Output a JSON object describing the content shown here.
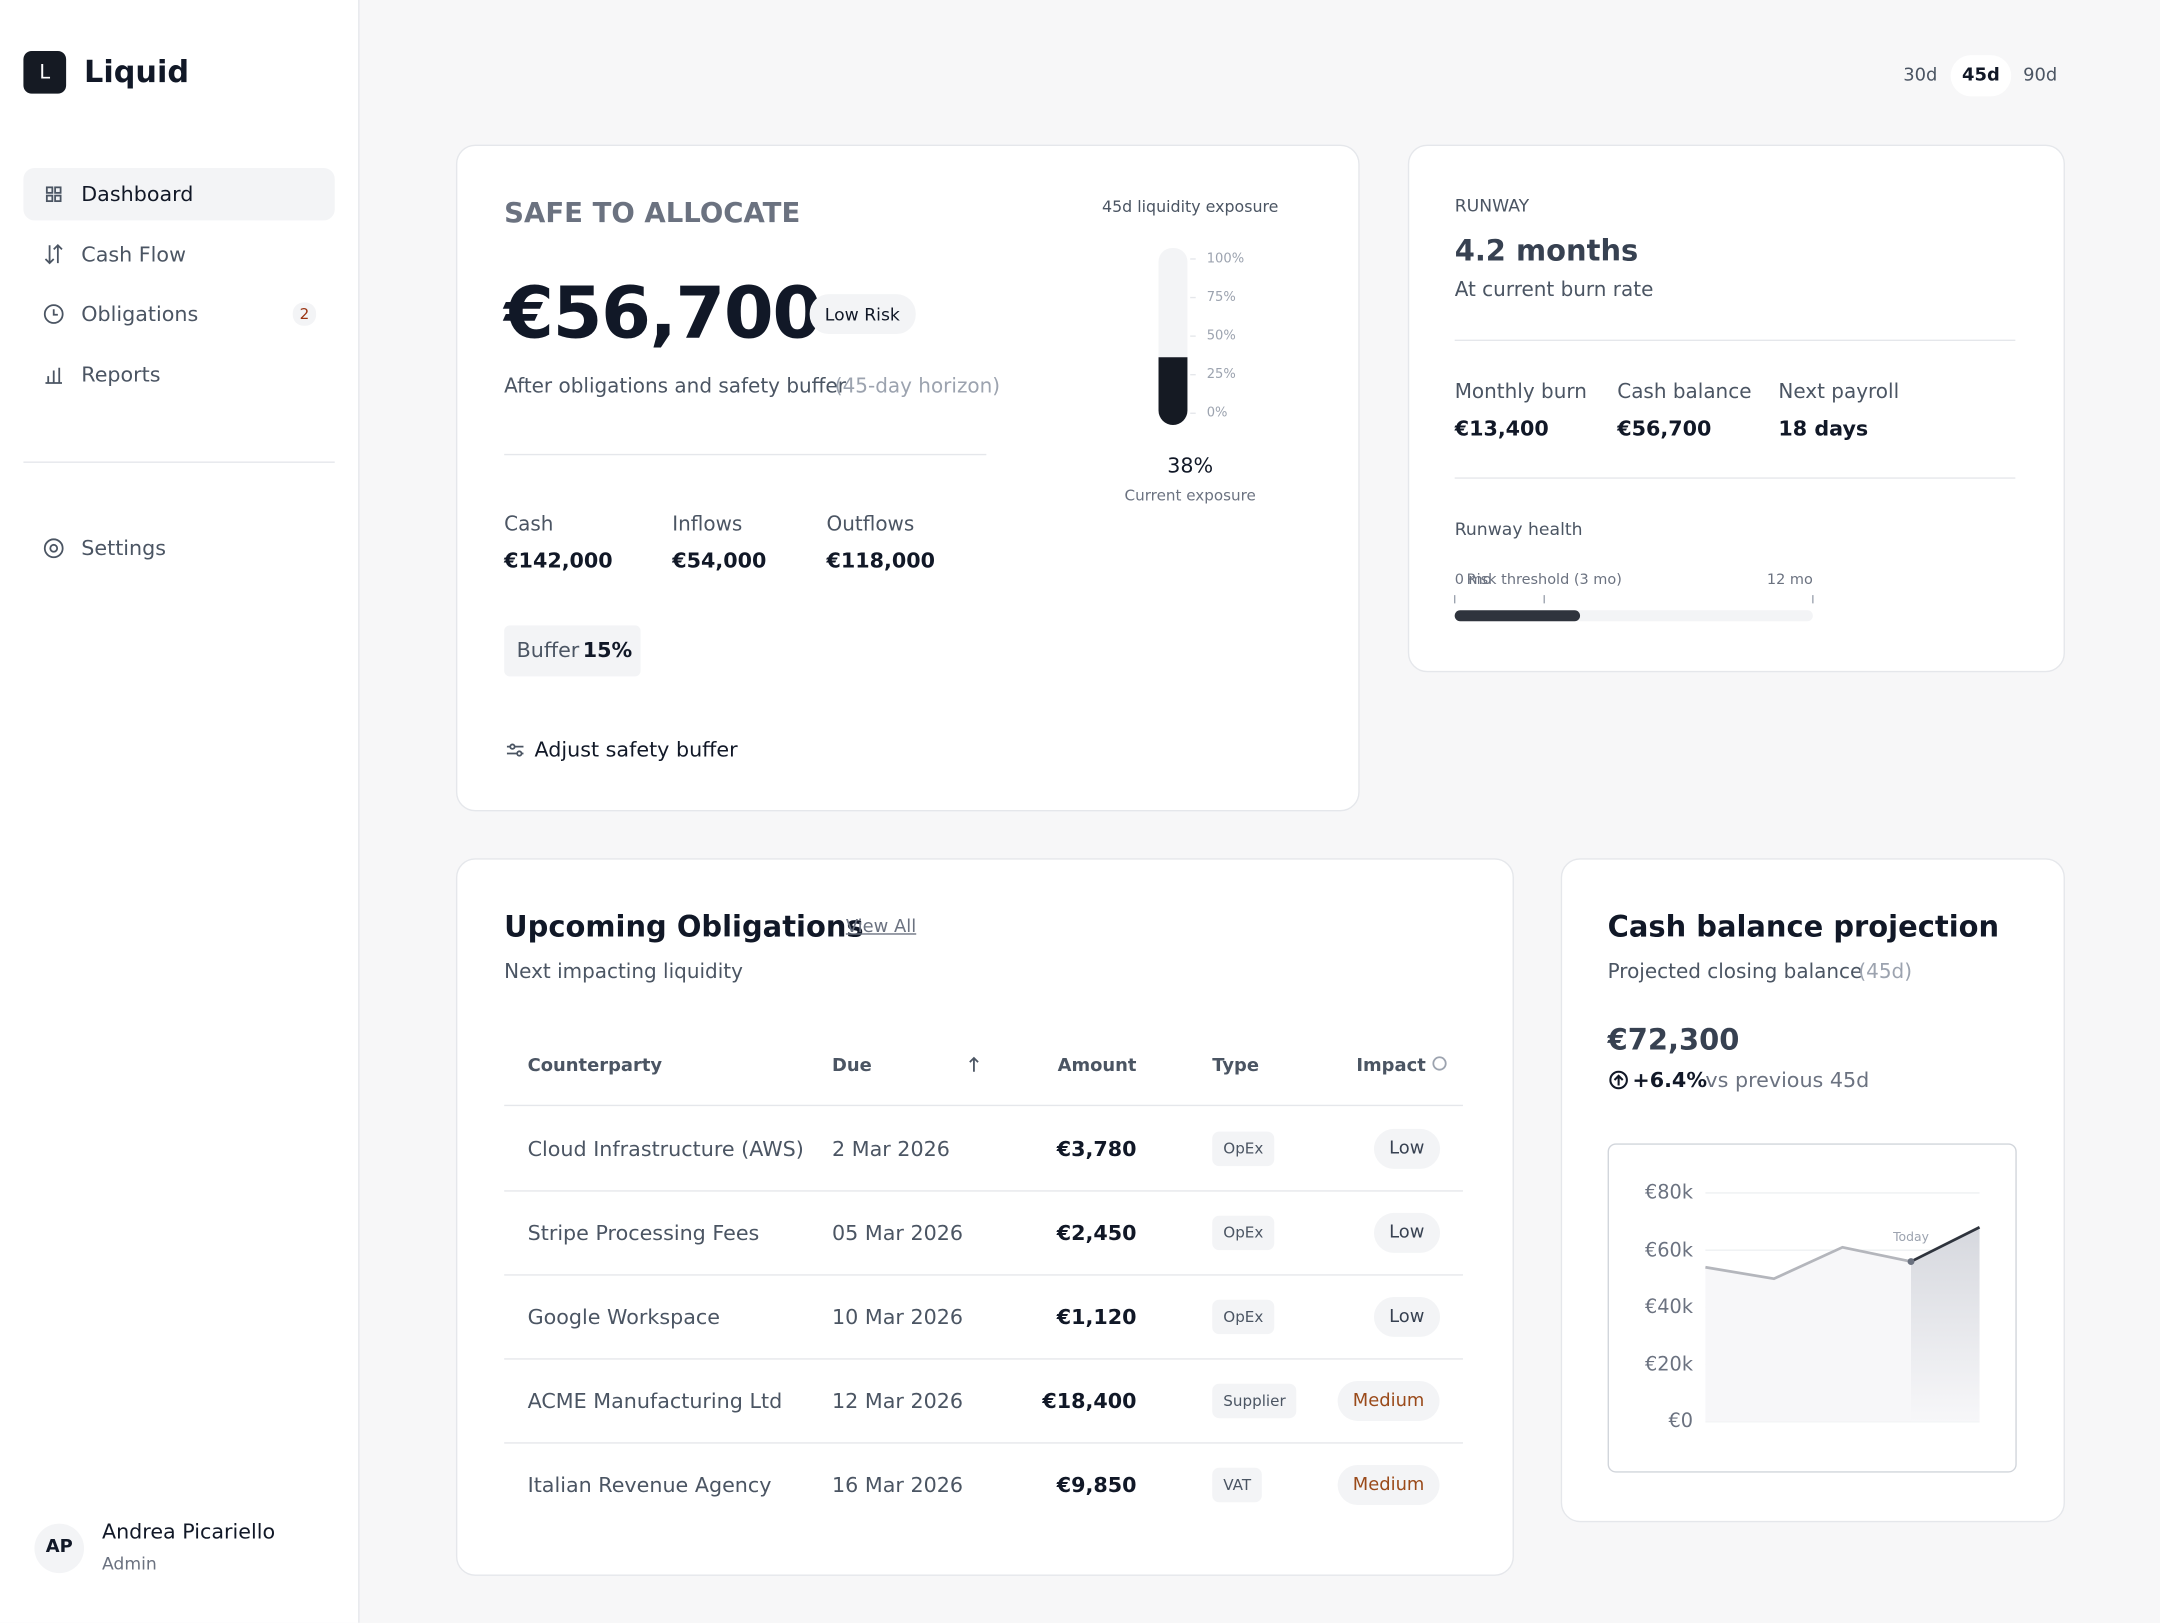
{
  "brand": {
    "logo": "L",
    "name": "Liquid"
  },
  "nav": [
    {
      "label": "Dashboard"
    },
    {
      "label": "Cash Flow"
    },
    {
      "label": "Obligations",
      "badge": "2"
    },
    {
      "label": "Reports"
    }
  ],
  "settings": "Settings",
  "user": {
    "initials": "AP",
    "name": "Andrea Picariello",
    "role": "Admin"
  },
  "range": {
    "options": [
      "30d",
      "45d",
      "90d"
    ],
    "selected": "45d"
  },
  "safe": {
    "title": "SAFE TO ALLOCATE",
    "amount": "€56,700",
    "risk": "Low Risk",
    "note": "After obligations and safety buffer",
    "horizon": "(45-day horizon)",
    "stats": [
      {
        "label": "Cash",
        "value": "€142,000"
      },
      {
        "label": "Inflows",
        "value": "€54,000"
      },
      {
        "label": "Outflows",
        "value": "€118,000"
      }
    ],
    "buffer_label": "Buffer",
    "buffer_value": "15%",
    "action": "Adjust safety buffer"
  },
  "runway": {
    "label": "RUNWAY",
    "value": "4.2 months",
    "note": "At current burn rate",
    "stats": [
      {
        "label": "Monthly burn",
        "value": "€13,400"
      },
      {
        "label": "Cash balance",
        "value": "€56,700"
      },
      {
        "label": "Next payroll",
        "value": "18 days"
      }
    ]
  },
  "projection": {
    "title": "Cash balance projection",
    "subtitle": "Projected closing balance",
    "period": "(45d)",
    "amount": "€72,300",
    "change": "+6.4%",
    "change_note": "vs previous 45d"
  },
  "obligations": {
    "title": "Upcoming Obligations",
    "link": "View All",
    "subtitle": "Next impacting liquidity",
    "columns": [
      "Counterparty",
      "Due",
      "Amount",
      "Type",
      "Impact"
    ],
    "rows": [
      [
        "Cloud Infrastructure (AWS)",
        "2 Mar 2026",
        "€3,780",
        "OpEx",
        "Low"
      ],
      [
        "Stripe Processing Fees",
        "05 Mar 2026",
        "€2,450",
        "OpEx",
        "Low"
      ],
      [
        "Google Workspace",
        "10 Mar 2026",
        "€1,120",
        "OpEx",
        "Low"
      ],
      [
        "ACME Manufacturing Ltd",
        "12 Mar 2026",
        "€18,400",
        "Supplier",
        "Medium"
      ],
      [
        "Italian Revenue Agency",
        "16 Mar 2026",
        "€9,850",
        "VAT",
        "Medium"
      ]
    ]
  },
  "chart_data": [
    {
      "type": "gauge",
      "title": "45d liquidity exposure",
      "value": 38,
      "value_label": "38%",
      "caption": "Current exposure",
      "color": "#151a23",
      "ylim": [
        0,
        100
      ],
      "yticks": [
        {
          "value": 100,
          "label": "100%"
        },
        {
          "value": 75,
          "label": "75%"
        },
        {
          "value": 50,
          "label": "50%"
        },
        {
          "value": 25,
          "label": "25%"
        },
        {
          "value": 0,
          "label": "0%"
        }
      ]
    },
    {
      "type": "progress",
      "title": "Runway health",
      "value": 4.2,
      "color": "#2f343d",
      "xlim": [
        0,
        12
      ],
      "xticks": [
        {
          "value": 0,
          "label": "0 mo"
        },
        {
          "value": 3,
          "label": "Risk threshold (3 mo)"
        },
        {
          "value": 12,
          "label": "12 mo"
        }
      ]
    },
    {
      "type": "line",
      "categories": [
        null,
        null,
        null,
        null,
        null
      ],
      "values": [
        54000,
        50000,
        61000,
        56000,
        68000
      ],
      "colors": {
        "past": "#b4b6bc",
        "future": "#2f343d"
      },
      "ylim": [
        0,
        80000
      ],
      "yticks": [
        {
          "value": 80000,
          "label": "€80k"
        },
        {
          "value": 60000,
          "label": "€60k"
        },
        {
          "value": 40000,
          "label": "€40k"
        },
        {
          "value": 20000,
          "label": "€20k"
        },
        {
          "value": 0,
          "label": "€0"
        }
      ],
      "grid": true,
      "annotation": {
        "text": "Today",
        "index": 3
      }
    }
  ]
}
